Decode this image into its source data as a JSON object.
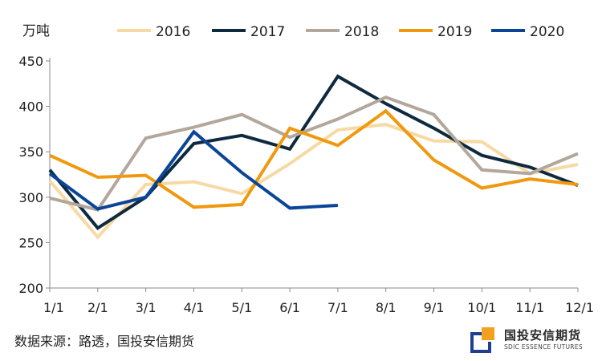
{
  "unit_label": "万吨",
  "source_text": "数据来源：路透，国投安信期货",
  "brand": {
    "name": "国投安信期货",
    "subtitle": "SDIC ESSENCE FUTURES",
    "colors": {
      "navy": "#1f3f8f",
      "gold": "#f2a11f"
    }
  },
  "chart_data": {
    "type": "line",
    "categories": [
      "1/1",
      "2/1",
      "3/1",
      "4/1",
      "5/1",
      "6/1",
      "7/1",
      "8/1",
      "9/1",
      "10/1",
      "11/1",
      "12/1"
    ],
    "ylim": [
      200,
      450
    ],
    "yticks": [
      200,
      250,
      300,
      350,
      400,
      450
    ],
    "ylabel": "万吨",
    "xlabel": "",
    "grid": false,
    "legend_position": "top",
    "series": [
      {
        "name": "2016",
        "color": "#f7d9a3",
        "values": [
          318,
          256,
          314,
          317,
          304,
          337,
          374,
          380,
          362,
          361,
          326,
          336
        ]
      },
      {
        "name": "2017",
        "color": "#0e2a3f",
        "values": [
          330,
          266,
          300,
          359,
          368,
          353,
          433,
          403,
          376,
          346,
          333,
          313
        ]
      },
      {
        "name": "2018",
        "color": "#b3a79c",
        "values": [
          299,
          286,
          365,
          377,
          391,
          366,
          386,
          410,
          391,
          330,
          326,
          348
        ]
      },
      {
        "name": "2019",
        "color": "#f0990f",
        "values": [
          346,
          322,
          324,
          289,
          292,
          376,
          357,
          395,
          341,
          310,
          320,
          314
        ]
      },
      {
        "name": "2020",
        "color": "#0a4596",
        "values": [
          326,
          287,
          300,
          372,
          327,
          288,
          291,
          null,
          null,
          null,
          null,
          null
        ]
      }
    ]
  }
}
